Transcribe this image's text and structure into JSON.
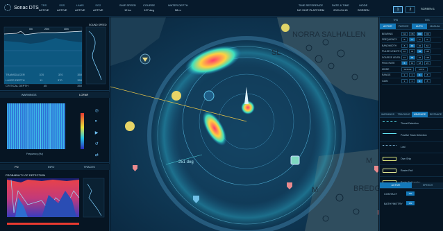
{
  "app": {
    "name": "Sonac DTS"
  },
  "topbar": {
    "status": [
      {
        "key": "TRS",
        "value": "ACTIVE"
      },
      {
        "key": "SSS",
        "value": "ACTIVE"
      },
      {
        "key": "LAMS",
        "value": "ACTIVE"
      },
      {
        "key": "SG2",
        "value": "ACTIVE"
      }
    ],
    "info": [
      {
        "key": "SHIP SPEED",
        "value": "12 kn"
      },
      {
        "key": "COURSE",
        "value": "127 deg"
      },
      {
        "key": "WATER DEPTH",
        "value": "58 m"
      }
    ],
    "right_info": [
      {
        "key": "TIME REFERENCE",
        "value": "NO SHIP PLATFORM"
      },
      {
        "key": "DATE & TIME",
        "value": "2021-04-15"
      },
      {
        "key": "MODE",
        "value": "SCREEN"
      }
    ],
    "pages": [
      "1",
      "2"
    ],
    "screen_label": "SCREEN 1"
  },
  "left": {
    "depth_profile": {
      "scale_label": "SOUND SPEED",
      "stats": [
        {
          "label": "TRANSDUCER",
          "a": "370",
          "b": "370",
          "c": "350"
        },
        {
          "label": "LAYER DEPTH",
          "a": "11",
          "b": "370",
          "c": "350"
        },
        {
          "label": "CRITICAL DEPTH",
          "a": "45",
          "b": "",
          "c": "350"
        }
      ]
    },
    "lofar": {
      "tabs": [
        "WARNINGS",
        "LOFAR"
      ],
      "controls": [
        "◎",
        "⏸",
        "▶",
        "↺",
        "⇄"
      ],
      "xlabel": "Frequency (Hz)"
    },
    "pod": {
      "tabs": [
        "PD",
        "INFO",
        "TRACES"
      ],
      "title": "PROBABILITY OF DETECTION"
    }
  },
  "map": {
    "place_labels": [
      "NORRA SALHALLEN",
      "BREDGA",
      "M",
      "M",
      "SL"
    ],
    "bearing_label": "251 deg"
  },
  "right": {
    "header_tabs": [
      "TRS",
      "SSS"
    ],
    "mode_tabs": [
      "ACTIVE",
      "PASSIVE",
      "AUTO",
      "MANUAL"
    ],
    "rows": [
      {
        "label": "BEARING",
        "cells": [
          "OA",
          "OB",
          "OC",
          "OD"
        ]
      },
      {
        "label": "FREQUENCY",
        "cells": [
          "B",
          "C",
          "D",
          "E"
        ]
      },
      {
        "label": "BANDWIDTH",
        "cells": [
          "8",
          "16",
          "32",
          "64"
        ]
      },
      {
        "label": "PULSE LENGTH",
        "cells": [
          "16",
          "32",
          "64",
          "128"
        ]
      },
      {
        "label": "SOURCE LEVEL",
        "cells": [
          "16",
          "32",
          "64",
          "128"
        ]
      },
      {
        "label": "PING RATE",
        "cells": [
          "6",
          "12",
          "18",
          "24"
        ]
      },
      {
        "label": "MODE",
        "cells": [
          "SINGLE",
          "",
          "",
          "AUTO"
        ]
      },
      {
        "label": "RANGE",
        "cells": [
          "1",
          "2",
          "4",
          "8"
        ]
      },
      {
        "label": "GAIN",
        "cells": [
          "1",
          "2",
          "4",
          "8"
        ]
      }
    ],
    "legend_tabs": [
      "WARNINGS",
      "TRACKING",
      "MEASURE",
      "DISTANCE"
    ],
    "legend": [
      {
        "label": "Threat Detection",
        "color": "#4ecbd8"
      },
      {
        "label": "Positive Track Detection",
        "color": "#63e3f2"
      },
      {
        "label": "Lost",
        "color": "#7ab6d8"
      },
      {
        "label": "Own Ship",
        "color": "#d8e27a"
      },
      {
        "label": "Raster Rail",
        "color": "#e8f09a"
      },
      {
        "label": "Radar Bathymetry",
        "color": "#d8d87a"
      }
    ],
    "toggle_tabs": [
      "ACTIVE",
      "SPEECH"
    ],
    "toggles": [
      {
        "label": "CONTACT",
        "value": "ON"
      },
      {
        "label": "BATHYMETRY",
        "value": "ON"
      }
    ]
  }
}
